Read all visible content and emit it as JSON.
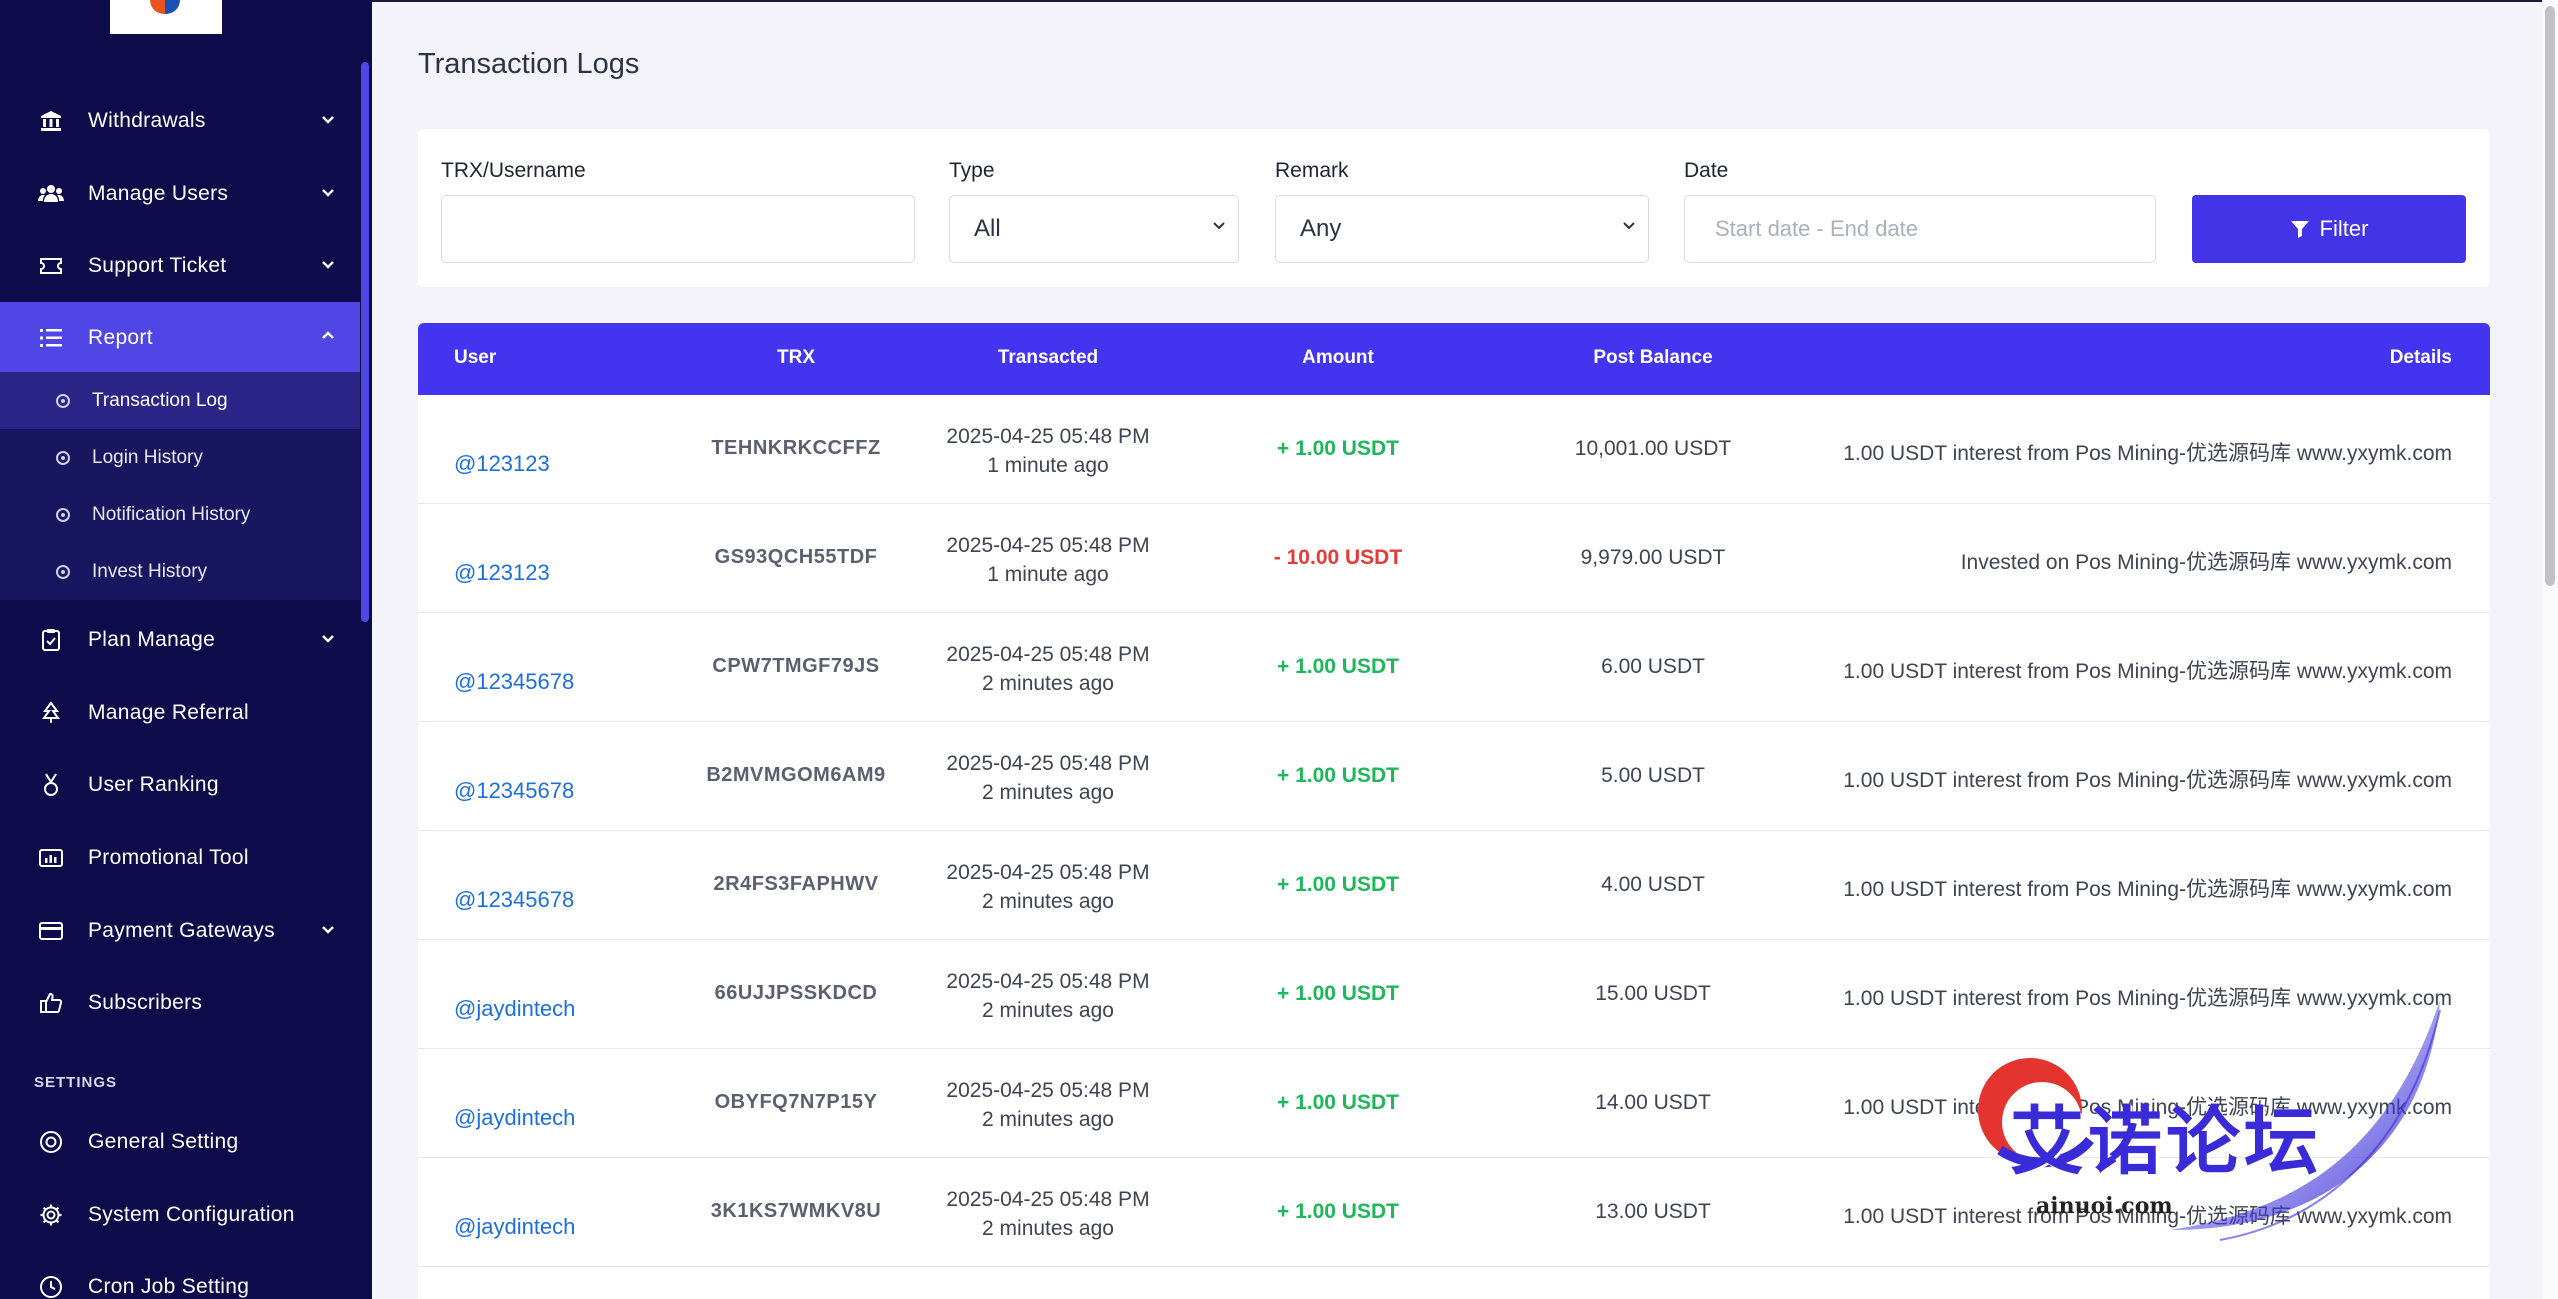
{
  "sidebar": {
    "nav": [
      {
        "label": "Withdrawals",
        "icon": "bank-icon",
        "chevron": "down"
      },
      {
        "label": "Manage Users",
        "icon": "users-icon",
        "chevron": "down"
      },
      {
        "label": "Support Ticket",
        "icon": "ticket-icon",
        "chevron": "down"
      },
      {
        "label": "Report",
        "icon": "list-icon",
        "chevron": "up"
      },
      {
        "label": "Plan Manage",
        "icon": "clipboard-icon",
        "chevron": "down"
      },
      {
        "label": "Manage Referral",
        "icon": "tree-icon",
        "chevron": ""
      },
      {
        "label": "User Ranking",
        "icon": "medal-icon",
        "chevron": ""
      },
      {
        "label": "Promotional Tool",
        "icon": "chart-icon",
        "chevron": ""
      },
      {
        "label": "Payment Gateways",
        "icon": "credit-card-icon",
        "chevron": "down"
      },
      {
        "label": "Subscribers",
        "icon": "thumbs-up-icon",
        "chevron": ""
      }
    ],
    "report_sub": [
      {
        "label": "Transaction Log"
      },
      {
        "label": "Login History"
      },
      {
        "label": "Notification History"
      },
      {
        "label": "Invest History"
      }
    ],
    "settings_heading": "SETTINGS",
    "settings": [
      {
        "label": "General Setting",
        "icon": "life-ring-icon"
      },
      {
        "label": "System Configuration",
        "icon": "gear-icon"
      },
      {
        "label": "Cron Job Setting",
        "icon": "clock-icon"
      }
    ]
  },
  "page": {
    "title": "Transaction Logs"
  },
  "filters": {
    "trx_label": "TRX/Username",
    "trx_value": "",
    "type_label": "Type",
    "type_value": "All",
    "remark_label": "Remark",
    "remark_value": "Any",
    "date_label": "Date",
    "date_placeholder": "Start date - End date",
    "button_label": "Filter"
  },
  "table": {
    "headers": {
      "user": "User",
      "trx": "TRX",
      "transacted": "Transacted",
      "amount": "Amount",
      "post_balance": "Post Balance",
      "details": "Details"
    },
    "rows": [
      {
        "user": "@123123",
        "trx": "TEHNKRKCCFFZ",
        "date": "2025-04-25 05:48 PM",
        "ago": "1 minute ago",
        "amount": "+ 1.00 USDT",
        "sign": "pos",
        "balance": "10,001.00 USDT",
        "details": "1.00 USDT interest from Pos Mining-优选源码库 www.yxymk.com"
      },
      {
        "user": "@123123",
        "trx": "GS93QCH55TDF",
        "date": "2025-04-25 05:48 PM",
        "ago": "1 minute ago",
        "amount": "- 10.00 USDT",
        "sign": "neg",
        "balance": "9,979.00 USDT",
        "details": "Invested on Pos Mining-优选源码库 www.yxymk.com"
      },
      {
        "user": "@12345678",
        "trx": "CPW7TMGF79JS",
        "date": "2025-04-25 05:48 PM",
        "ago": "2 minutes ago",
        "amount": "+ 1.00 USDT",
        "sign": "pos",
        "balance": "6.00 USDT",
        "details": "1.00 USDT interest from Pos Mining-优选源码库 www.yxymk.com"
      },
      {
        "user": "@12345678",
        "trx": "B2MVMGOM6AM9",
        "date": "2025-04-25 05:48 PM",
        "ago": "2 minutes ago",
        "amount": "+ 1.00 USDT",
        "sign": "pos",
        "balance": "5.00 USDT",
        "details": "1.00 USDT interest from Pos Mining-优选源码库 www.yxymk.com"
      },
      {
        "user": "@12345678",
        "trx": "2R4FS3FAPHWV",
        "date": "2025-04-25 05:48 PM",
        "ago": "2 minutes ago",
        "amount": "+ 1.00 USDT",
        "sign": "pos",
        "balance": "4.00 USDT",
        "details": "1.00 USDT interest from Pos Mining-优选源码库 www.yxymk.com"
      },
      {
        "user": "@jaydintech",
        "trx": "66UJJPSSKDCD",
        "date": "2025-04-25 05:48 PM",
        "ago": "2 minutes ago",
        "amount": "+ 1.00 USDT",
        "sign": "pos",
        "balance": "15.00 USDT",
        "details": "1.00 USDT interest from Pos Mining-优选源码库 www.yxymk.com"
      },
      {
        "user": "@jaydintech",
        "trx": "OBYFQ7N7P15Y",
        "date": "2025-04-25 05:48 PM",
        "ago": "2 minutes ago",
        "amount": "+ 1.00 USDT",
        "sign": "pos",
        "balance": "14.00 USDT",
        "details": "1.00 USDT interest from Pos Mining-优选源码库 www.yxymk.com"
      },
      {
        "user": "@jaydintech",
        "trx": "3K1KS7WMKV8U",
        "date": "2025-04-25 05:48 PM",
        "ago": "2 minutes ago",
        "amount": "+ 1.00 USDT",
        "sign": "pos",
        "balance": "13.00 USDT",
        "details": "1.00 USDT interest from Pos Mining-优选源码库 www.yxymk.com"
      }
    ]
  },
  "watermark": {
    "text": "艾诺论坛",
    "sub": "ainuoi.com"
  },
  "colors": {
    "sidebar": "#0e0b4a",
    "accent": "#4f46e5",
    "header": "#4334f0",
    "positive": "#1eb85a",
    "negative": "#e63b3b",
    "link": "#1d6fe0"
  }
}
